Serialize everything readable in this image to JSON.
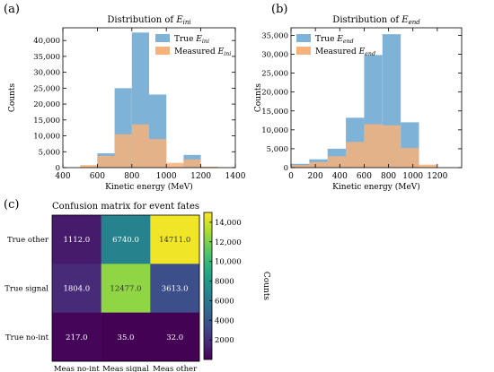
{
  "chart_data": [
    {
      "panel": "(a)",
      "type": "bar",
      "title": "Distribution of E",
      "title_sub": "ini",
      "xlabel": "Kinetic energy (MeV)",
      "ylabel": "Counts",
      "xlim": [
        400,
        1400
      ],
      "ylim": [
        0,
        44000
      ],
      "xticks": [
        400,
        600,
        800,
        1000,
        1200,
        1400
      ],
      "xtick_labels": [
        "400",
        "600",
        "800",
        "1000",
        "1200",
        "1400"
      ],
      "yticks": [
        0,
        5000,
        10000,
        15000,
        20000,
        25000,
        30000,
        35000,
        40000
      ],
      "ytick_labels": [
        "0",
        "5,000",
        "10,000",
        "15,000",
        "20,000",
        "25,000",
        "30,000",
        "35,000",
        "40,000"
      ],
      "legend_location": "upper right",
      "series": [
        {
          "name": "True E",
          "name_sub": "ini",
          "color": "#7fb2d7",
          "bins": [
            [
              500,
              600,
              0
            ],
            [
              600,
              700,
              4500
            ],
            [
              700,
              800,
              25000
            ],
            [
              800,
              900,
              42500
            ],
            [
              900,
              1000,
              23000
            ],
            [
              1000,
              1100,
              0
            ],
            [
              1100,
              1200,
              4000
            ],
            [
              1200,
              1300,
              0
            ]
          ]
        },
        {
          "name": "Measured E",
          "name_sub": "ini",
          "color": "#f5b27a",
          "bins": [
            [
              500,
              600,
              800
            ],
            [
              600,
              700,
              3700
            ],
            [
              700,
              800,
              10500
            ],
            [
              800,
              900,
              13600
            ],
            [
              900,
              1000,
              9000
            ],
            [
              1000,
              1100,
              1500
            ],
            [
              1100,
              1200,
              2600
            ],
            [
              1200,
              1300,
              300
            ]
          ]
        }
      ]
    },
    {
      "panel": "(b)",
      "type": "bar",
      "title": "Distribution of E",
      "title_sub": "end",
      "xlabel": "Kinetic energy (MeV)",
      "ylabel": "Counts",
      "xlim": [
        0,
        1400
      ],
      "ylim": [
        0,
        37000
      ],
      "xticks": [
        0,
        200,
        400,
        600,
        800,
        1000,
        1200
      ],
      "xtick_labels": [
        "0",
        "200",
        "400",
        "600",
        "800",
        "1000",
        "1200"
      ],
      "yticks": [
        0,
        5000,
        10000,
        15000,
        20000,
        25000,
        30000,
        35000
      ],
      "ytick_labels": [
        "0",
        "5,000",
        "10,000",
        "15,000",
        "20,000",
        "25,000",
        "30,000",
        "35,000"
      ],
      "legend_location": "upper left",
      "series": [
        {
          "name": "True E",
          "name_sub": "end",
          "color": "#7fb2d7",
          "bins": [
            [
              0,
              150,
              1000
            ],
            [
              150,
              300,
              2200
            ],
            [
              300,
              450,
              5000
            ],
            [
              450,
              600,
              13200
            ],
            [
              600,
              750,
              29800
            ],
            [
              750,
              900,
              35300
            ],
            [
              900,
              1050,
              12000
            ],
            [
              1050,
              1200,
              0
            ]
          ]
        },
        {
          "name": "Measured E",
          "name_sub": "end",
          "color": "#f5b27a",
          "bins": [
            [
              0,
              150,
              700
            ],
            [
              150,
              300,
              1500
            ],
            [
              300,
              450,
              3000
            ],
            [
              450,
              600,
              6800
            ],
            [
              600,
              750,
              11500
            ],
            [
              750,
              900,
              11200
            ],
            [
              900,
              1050,
              5200
            ],
            [
              1050,
              1200,
              800
            ]
          ]
        }
      ]
    },
    {
      "panel": "(c)",
      "type": "heatmap",
      "title": "Confusion matrix for event fates",
      "row_labels": [
        "True other",
        "True signal",
        "True no-int"
      ],
      "col_labels": [
        "Meas no-int",
        "Meas signal",
        "Meas other"
      ],
      "values": [
        [
          1112.0,
          6740.0,
          14711.0
        ],
        [
          1804.0,
          12477.0,
          3613.0
        ],
        [
          217.0,
          35.0,
          32.0
        ]
      ],
      "cell_labels": [
        [
          "1112.0",
          "6740.0",
          "14711.0"
        ],
        [
          "1804.0",
          "12477.0",
          "3613.0"
        ],
        [
          "217.0",
          "35.0",
          "32.0"
        ]
      ],
      "colorbar_label": "Counts",
      "colorbar_range": [
        0,
        15000
      ],
      "colorbar_ticks": [
        2000,
        4000,
        6000,
        8000,
        10000,
        12000,
        14000
      ],
      "colorbar_tick_labels": [
        "2000",
        "4000",
        "6000",
        "8000",
        "10,000",
        "12,000",
        "14,000"
      ],
      "colormap": "viridis"
    }
  ]
}
